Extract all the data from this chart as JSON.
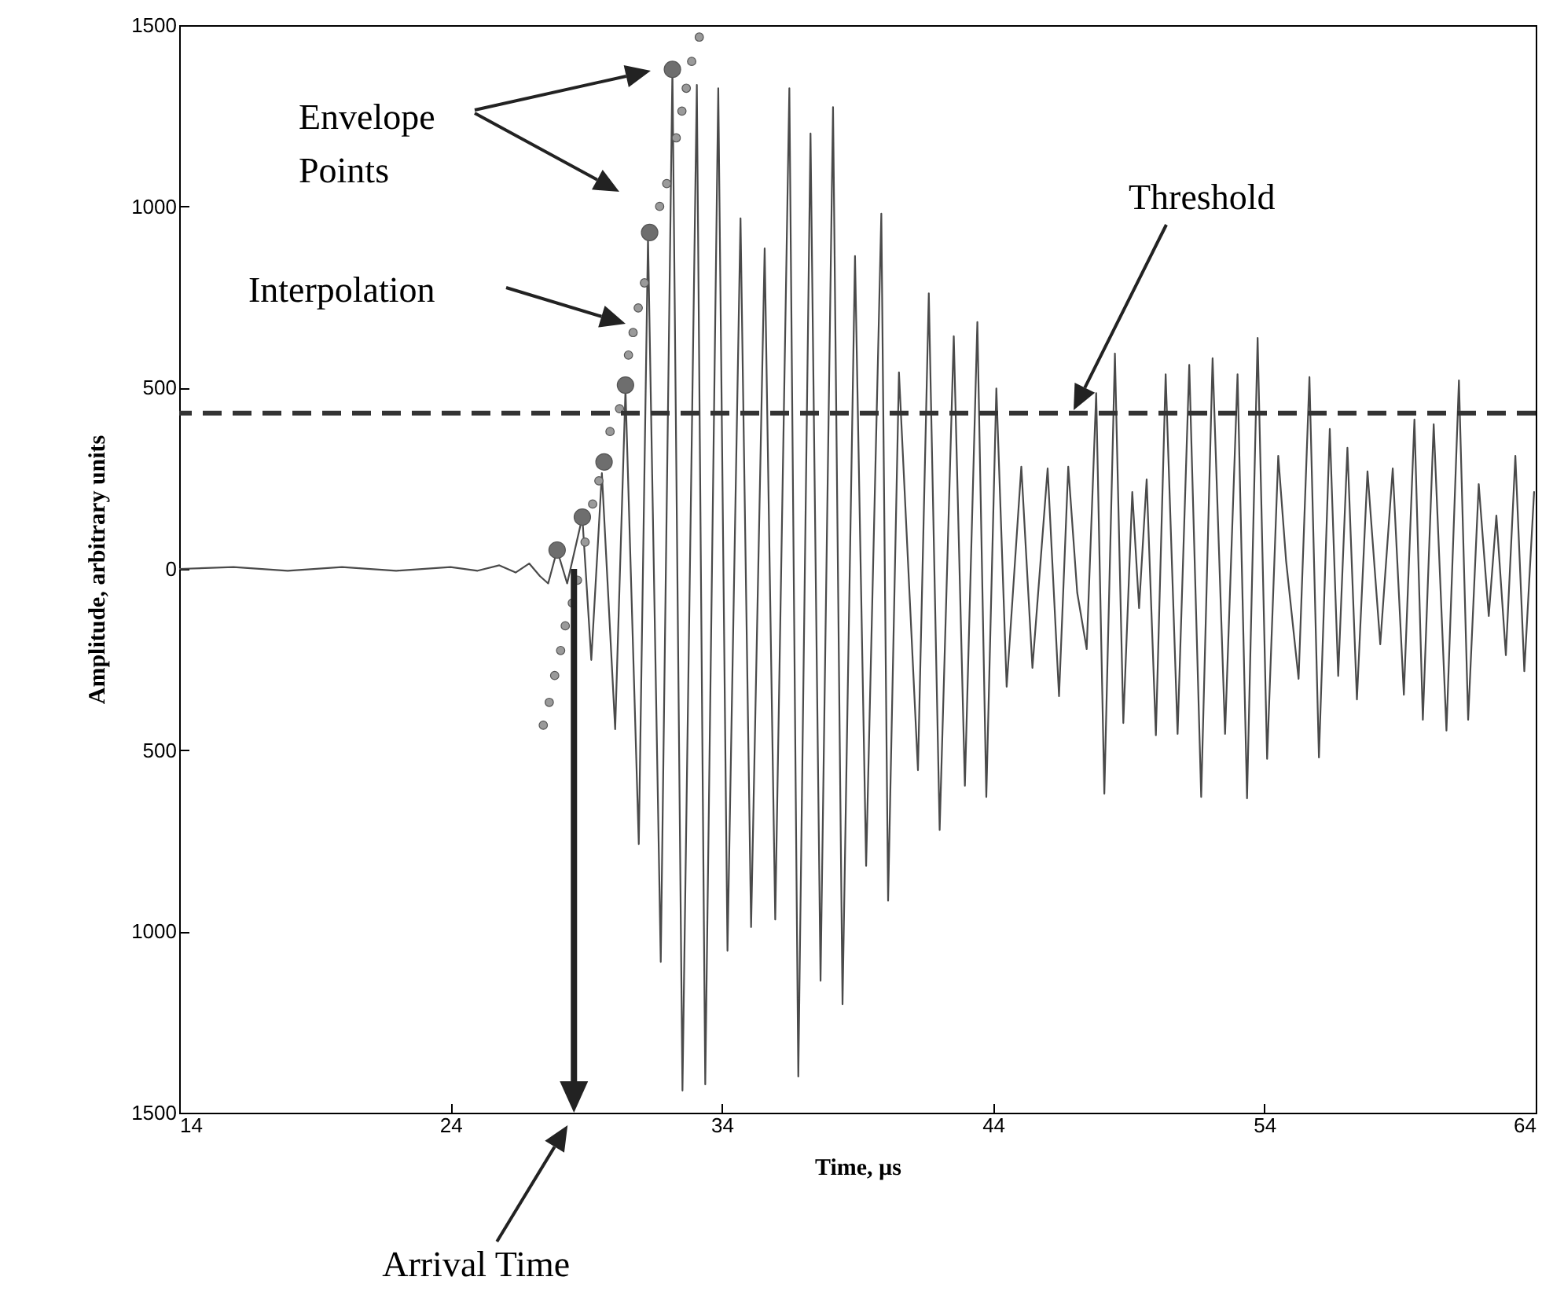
{
  "chart_data": {
    "type": "line",
    "xlabel": "Time, µs",
    "ylabel": "Amplitude, arbitrary units",
    "xlim": [
      14,
      64
    ],
    "xticks": [
      14,
      24,
      34,
      44,
      54,
      64
    ],
    "ylim": [
      -1500,
      1500
    ],
    "yticks": [
      {
        "value": -1500,
        "label": "1500"
      },
      {
        "value": -1000,
        "label": "1000"
      },
      {
        "value": -500,
        "label": "500"
      },
      0,
      500,
      1000,
      1500
    ],
    "grid": false,
    "series": [
      {
        "color": "#4a4a4a",
        "x": [
          14,
          16,
          18,
          20,
          22,
          24,
          25,
          25.8,
          26.4,
          26.9,
          27.3,
          27.6,
          27.93,
          28.3,
          28.86,
          29.19,
          29.58,
          30.07,
          30.45,
          30.94,
          31.28,
          31.75,
          32.18,
          32.55,
          33.08,
          33.39,
          33.87,
          34.21,
          34.69,
          35.08,
          35.58,
          35.97,
          36.49,
          36.82,
          37.27,
          37.64,
          38.1,
          38.45,
          38.91,
          39.32,
          39.88,
          40.13,
          40.53,
          41.23,
          41.63,
          42.03,
          42.55,
          42.96,
          43.42,
          43.75,
          44.12,
          44.5,
          45.04,
          45.45,
          46.01,
          46.43,
          46.77,
          47.1,
          47.45,
          47.8,
          48.1,
          48.49,
          48.8,
          49.13,
          49.38,
          49.66,
          50.0,
          50.36,
          50.8,
          51.23,
          51.67,
          52.09,
          52.55,
          53.01,
          53.36,
          53.75,
          54.1,
          54.51,
          54.8,
          55.26,
          55.66,
          56.01,
          56.41,
          56.72,
          57.06,
          57.41,
          57.8,
          58.27,
          58.73,
          59.14,
          59.53,
          59.84,
          60.24,
          60.71,
          61.17,
          61.51,
          61.9,
          62.27,
          62.55,
          62.9,
          63.25,
          63.58,
          63.94
        ],
        "values": [
          0,
          5,
          -5,
          5,
          -5,
          5,
          -5,
          10,
          -10,
          15,
          -20,
          -40,
          52,
          -40,
          143,
          -251,
          264,
          -442,
          494,
          -759,
          915,
          -1084,
          1378,
          -1439,
          1335,
          -1422,
          1326,
          -1053,
          967,
          -988,
          884,
          -967,
          1326,
          -1400,
          1201,
          -1136,
          1274,
          -1201,
          863,
          -819,
          980,
          -915,
          542,
          -555,
          760,
          -720,
          642,
          -598,
          681,
          -629,
          498,
          -325,
          282,
          -273,
          277,
          -351,
          282,
          -65,
          -221,
          485,
          -620,
          594,
          -425,
          212,
          -108,
          247,
          -459,
          537,
          -455,
          563,
          -629,
          581,
          -455,
          537,
          -633,
          637,
          -524,
          312,
          22,
          -303,
          529,
          -520,
          386,
          -295,
          334,
          -360,
          269,
          -208,
          277,
          -347,
          412,
          -416,
          399,
          -446,
          520,
          -416,
          234,
          -130,
          147,
          -238,
          312,
          -282,
          212
        ]
      },
      {
        "type": "scatter",
        "marker": "circle",
        "color": "#9a9a9a",
        "x": [
          27.42,
          27.64,
          27.84,
          28.06,
          28.23,
          28.49,
          28.68,
          28.96,
          29.24,
          29.47,
          29.88,
          30.23,
          30.56,
          30.73,
          30.92,
          31.15,
          31.71,
          31.97,
          32.32,
          32.53,
          32.69,
          32.89,
          33.17
        ],
        "values": [
          -431,
          -368,
          -294,
          -225,
          -157,
          -94,
          -31,
          74,
          179,
          243,
          379,
          442,
          590,
          652,
          720,
          789,
          1000,
          1063,
          1189,
          1263,
          1326,
          1400,
          1467
        ]
      },
      {
        "type": "scatter",
        "marker": "circle",
        "color": "#6e6e6e",
        "x": [
          27.93,
          28.86,
          29.66,
          30.45,
          31.34,
          32.18
        ],
        "values": [
          52,
          143,
          295,
          507,
          928,
          1378
        ]
      }
    ],
    "ref_lines": [
      {
        "axis": "y",
        "value": 430,
        "color": "#333333",
        "line_style": "dashed"
      },
      {
        "axis": "x",
        "value": 28.55,
        "color": "#222222",
        "line_style": "solid",
        "label": "Arrival Time"
      }
    ],
    "annotations": [
      "Envelope Points",
      "Interpolation",
      "Threshold"
    ]
  }
}
